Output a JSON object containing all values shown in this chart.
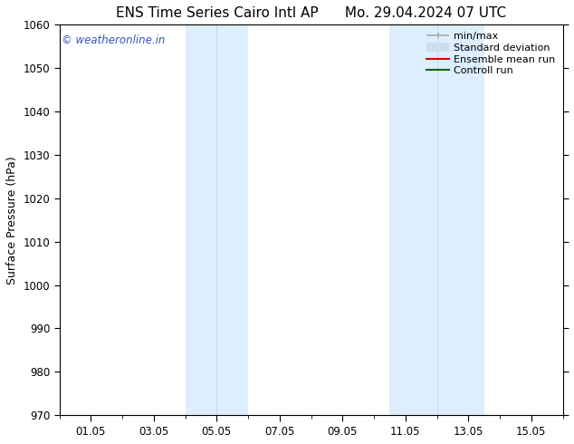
{
  "title_left": "ENS Time Series Cairo Intl AP",
  "title_right": "Mo. 29.04.2024 07 UTC",
  "ylabel": "Surface Pressure (hPa)",
  "xlim": [
    0,
    16
  ],
  "ylim": [
    970,
    1060
  ],
  "yticks": [
    970,
    980,
    990,
    1000,
    1010,
    1020,
    1030,
    1040,
    1050,
    1060
  ],
  "xtick_positions": [
    1,
    3,
    5,
    7,
    9,
    11,
    13,
    15
  ],
  "xtick_labels": [
    "01.05",
    "03.05",
    "05.05",
    "07.05",
    "09.05",
    "11.05",
    "13.05",
    "15.05"
  ],
  "shaded_bands": [
    {
      "xmin": 4.0,
      "xmax": 6.0
    },
    {
      "xmin": 10.5,
      "xmax": 13.5
    }
  ],
  "shade_color": "#ddeeff",
  "shade_line_color": "#c0d8ee",
  "watermark_text": "© weatheronline.in",
  "watermark_color": "#3355bb",
  "background_color": "#ffffff",
  "legend_items": [
    {
      "label": "min/max",
      "color": "#aaaaaa",
      "lw": 1.5
    },
    {
      "label": "Standard deviation",
      "color": "#ccddee",
      "lw": 7
    },
    {
      "label": "Ensemble mean run",
      "color": "#dd0000",
      "lw": 1.5
    },
    {
      "label": "Controll run",
      "color": "#006600",
      "lw": 1.5
    }
  ],
  "title_fontsize": 11,
  "tick_fontsize": 8.5,
  "ylabel_fontsize": 9,
  "watermark_fontsize": 8.5,
  "legend_fontsize": 8
}
